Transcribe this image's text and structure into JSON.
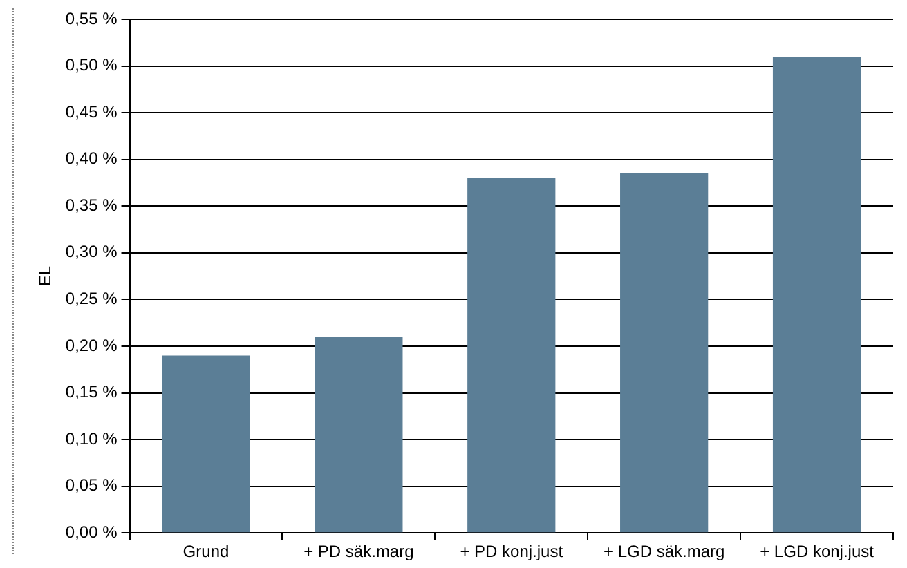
{
  "chart_data": {
    "type": "bar",
    "ylabel": "EL",
    "categories": [
      "Grund",
      "+ PD säk.marg",
      "+ PD konj.just",
      "+ LGD säk.marg",
      "+ LGD konj.just"
    ],
    "values": [
      0.19,
      0.21,
      0.38,
      0.385,
      0.51
    ],
    "color": "#5b7e96",
    "ylim": [
      0,
      0.55
    ],
    "yticks": [
      {
        "value": 0,
        "label": "0,00 %"
      },
      {
        "value": 0.05,
        "label": "0,05 %"
      },
      {
        "value": 0.1,
        "label": "0,10 %"
      },
      {
        "value": 0.15,
        "label": "0,15 %"
      },
      {
        "value": 0.2,
        "label": "0,20 %"
      },
      {
        "value": 0.25,
        "label": "0,25 %"
      },
      {
        "value": 0.3,
        "label": "0,30 %"
      },
      {
        "value": 0.35,
        "label": "0,35 %"
      },
      {
        "value": 0.4,
        "label": "0,40 %"
      },
      {
        "value": 0.45,
        "label": "0,45 %"
      },
      {
        "value": 0.5,
        "label": "0,50 %"
      },
      {
        "value": 0.55,
        "label": "0,55 %"
      }
    ],
    "grid": "y",
    "legend": false
  }
}
